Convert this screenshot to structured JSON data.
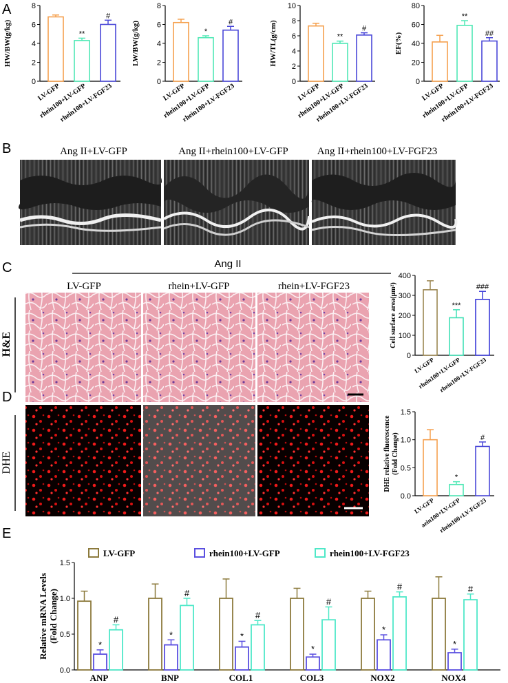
{
  "colors": {
    "gfp": "#F5A04E",
    "rhein": "#4FE8B5",
    "fgf23": "#4A48D8",
    "e_gfp": "#8C7A3C",
    "e_rhein": "#5A4FE0",
    "e_fgf23": "#4FE8C8",
    "hist_gfp": "#9A8550",
    "hist_rhein": "#3FE0B5",
    "hist_fgf23": "#3A3AD8"
  },
  "panels": {
    "a": "A",
    "b": "B",
    "c": "C",
    "d": "D",
    "e": "E"
  },
  "groups": [
    "LV-GFP",
    "rhein100+LV-GFP",
    "rhein100+LV-FGF23"
  ],
  "echo": {
    "labels": [
      "Ang II+LV-GFP",
      "Ang II+rhein100+LV-GFP",
      "Ang II+rhein100+LV-FGF23"
    ]
  },
  "histology": {
    "header": "Ang II",
    "columns": [
      "LV-GFP",
      "rhein+LV-GFP",
      "rhein+LV-FGF23"
    ],
    "he_label": "H&E",
    "dhe_label": "DHE"
  },
  "chart_data": [
    {
      "id": "hwbw",
      "type": "bar",
      "ylabel": "HW/BW(g/kg)",
      "ylim": [
        0,
        8
      ],
      "ticks": [
        "0",
        "2",
        "4",
        "6",
        "8"
      ],
      "categories": [
        "LV-GFP",
        "rhein100+LV-GFP",
        "rhein100+LV-FGF23"
      ],
      "values": [
        6.8,
        4.3,
        6.0
      ],
      "errors": [
        0.2,
        0.25,
        0.45
      ],
      "marks": [
        "",
        "**",
        "#"
      ]
    },
    {
      "id": "lwbw",
      "type": "bar",
      "ylabel": "LW/BW(g/kg)",
      "ylim": [
        0,
        8
      ],
      "ticks": [
        "0",
        "2",
        "4",
        "6",
        "8"
      ],
      "categories": [
        "LV-GFP",
        "rhein100+LV-GFP",
        "rhein100+LV-FGF23"
      ],
      "values": [
        6.2,
        4.6,
        5.4
      ],
      "errors": [
        0.35,
        0.2,
        0.4
      ],
      "marks": [
        "",
        "*",
        "#"
      ]
    },
    {
      "id": "hwtl",
      "type": "bar",
      "ylabel": "HW/TL(g/cm)",
      "ylim": [
        0,
        10
      ],
      "ticks": [
        "0",
        "2",
        "4",
        "6",
        "8",
        "10"
      ],
      "categories": [
        "LV-GFP",
        "rhein100+LV-GFP",
        "rhein100+LV-FGF23"
      ],
      "values": [
        7.3,
        5.0,
        6.1
      ],
      "errors": [
        0.35,
        0.3,
        0.3
      ],
      "marks": [
        "",
        "**",
        "#"
      ]
    },
    {
      "id": "ef",
      "type": "bar",
      "ylabel": "EF(%)",
      "ylim": [
        0,
        80
      ],
      "ticks": [
        "0",
        "20",
        "40",
        "60",
        "80"
      ],
      "categories": [
        "LV-GFP",
        "rhein100+LV-GFP",
        "rhein100+LV-FGF23"
      ],
      "values": [
        41.5,
        59,
        42.5
      ],
      "errors": [
        7,
        5,
        3.5
      ],
      "marks": [
        "",
        "**",
        "##"
      ]
    },
    {
      "id": "csa",
      "type": "bar",
      "ylabel": "Cell surface area(μm²)",
      "ylim": [
        0,
        400
      ],
      "ticks": [
        "0",
        "100",
        "200",
        "300",
        "400"
      ],
      "categories": [
        "LV-GFP",
        "rhein100+LV-GFP",
        "rhein100+LV-FGF23"
      ],
      "values": [
        328,
        188,
        280
      ],
      "errors": [
        45,
        40,
        40
      ],
      "marks": [
        "",
        "***",
        "###"
      ]
    },
    {
      "id": "dhe",
      "type": "bar",
      "ylabel": "DHE relative fluorescence (Fold Change)",
      "ylim": [
        0,
        1.5
      ],
      "ticks": [
        "0.0",
        "0.5",
        "1.0",
        "1.5"
      ],
      "categories": [
        "LV-GFP",
        "aein100+LV-GFP",
        "rhein100+LV-FGF23"
      ],
      "values": [
        1.0,
        0.2,
        0.88
      ],
      "errors": [
        0.18,
        0.05,
        0.08
      ],
      "marks": [
        "",
        "*",
        "#"
      ]
    },
    {
      "id": "mrna",
      "type": "bar",
      "ylabel": "Relative mRNA Levels (Fold Change)",
      "ylim": [
        0,
        1.5
      ],
      "ticks": [
        "0.0",
        "0.5",
        "1.0",
        "1.5"
      ],
      "categories": [
        "ANP",
        "BNP",
        "COL1",
        "COL3",
        "NOX2",
        "NOX4"
      ],
      "series": [
        {
          "name": "LV-GFP",
          "values": [
            0.96,
            1.0,
            1.0,
            1.0,
            1.0,
            1.0
          ],
          "errors": [
            0.14,
            0.2,
            0.27,
            0.14,
            0.1,
            0.3
          ],
          "marks": [
            "",
            "",
            "",
            "",
            "",
            ""
          ]
        },
        {
          "name": "rhein100+LV-GFP",
          "values": [
            0.22,
            0.35,
            0.32,
            0.18,
            0.42,
            0.24
          ],
          "errors": [
            0.06,
            0.07,
            0.08,
            0.04,
            0.07,
            0.05
          ],
          "marks": [
            "*",
            "*",
            "*",
            "*",
            "*",
            "*"
          ]
        },
        {
          "name": "rhein100+LV-FGF23",
          "values": [
            0.56,
            0.9,
            0.63,
            0.7,
            1.02,
            0.98
          ],
          "errors": [
            0.07,
            0.1,
            0.06,
            0.18,
            0.07,
            0.08
          ],
          "marks": [
            "#",
            "#",
            "#",
            "#",
            "#",
            "#"
          ]
        }
      ]
    }
  ]
}
